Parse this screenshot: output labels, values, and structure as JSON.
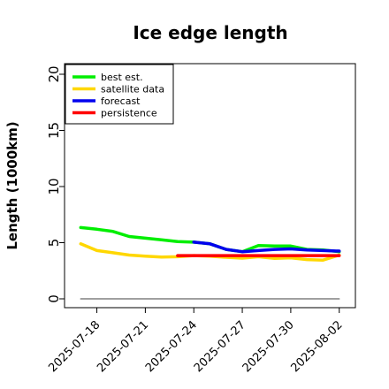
{
  "chart_data": {
    "type": "line",
    "title": "Ice edge length",
    "xlabel": "",
    "ylabel": "Length (1000km)",
    "ylim": [
      0,
      20
    ],
    "xlim": [
      "2025-07-16",
      "2025-08-03"
    ],
    "yticks": [
      0,
      5,
      10,
      15,
      20
    ],
    "xticks": [
      "2025-07-18",
      "2025-07-21",
      "2025-07-24",
      "2025-07-27",
      "2025-07-30",
      "2025-08-02"
    ],
    "highlighted_xtick": "2025-07-24",
    "highlight_color": "#228b22",
    "grid": false,
    "legend_position": "top-left",
    "series": [
      {
        "name": "best est.",
        "color": "#00ee00",
        "x": [
          "2025-07-17",
          "2025-07-18",
          "2025-07-19",
          "2025-07-20",
          "2025-07-21",
          "2025-07-22",
          "2025-07-23",
          "2025-07-24",
          "2025-07-25",
          "2025-07-26",
          "2025-07-27",
          "2025-07-28",
          "2025-07-29",
          "2025-07-30",
          "2025-07-31",
          "2025-08-01",
          "2025-08-02"
        ],
        "values": [
          6.35,
          6.2,
          6.0,
          5.55,
          5.4,
          5.25,
          5.1,
          5.05,
          4.9,
          4.4,
          4.2,
          4.75,
          4.7,
          4.7,
          4.4,
          4.35,
          4.2
        ]
      },
      {
        "name": "satellite data",
        "color": "#ffd700",
        "x": [
          "2025-07-17",
          "2025-07-18",
          "2025-07-19",
          "2025-07-20",
          "2025-07-21",
          "2025-07-22",
          "2025-07-23",
          "2025-07-24",
          "2025-07-25",
          "2025-07-26",
          "2025-07-27",
          "2025-07-28",
          "2025-07-29",
          "2025-07-30",
          "2025-07-31",
          "2025-08-01",
          "2025-08-02"
        ],
        "values": [
          4.9,
          4.3,
          4.1,
          3.9,
          3.8,
          3.72,
          3.75,
          3.85,
          3.8,
          3.7,
          3.62,
          3.75,
          3.6,
          3.65,
          3.5,
          3.45,
          3.9
        ]
      },
      {
        "name": "forecast",
        "color": "#0000ee",
        "x": [
          "2025-07-24",
          "2025-07-25",
          "2025-07-26",
          "2025-07-27",
          "2025-07-28",
          "2025-07-29",
          "2025-07-30",
          "2025-07-31",
          "2025-08-01",
          "2025-08-02"
        ],
        "values": [
          5.05,
          4.9,
          4.4,
          4.2,
          4.3,
          4.4,
          4.45,
          4.35,
          4.3,
          4.25
        ]
      },
      {
        "name": "persistence",
        "color": "#ff0000",
        "x": [
          "2025-07-23",
          "2025-08-02"
        ],
        "values": [
          3.85,
          3.85
        ]
      },
      {
        "color": "#808080",
        "x": [
          "2025-07-17",
          "2025-08-02"
        ],
        "values": [
          0,
          0
        ]
      }
    ]
  }
}
